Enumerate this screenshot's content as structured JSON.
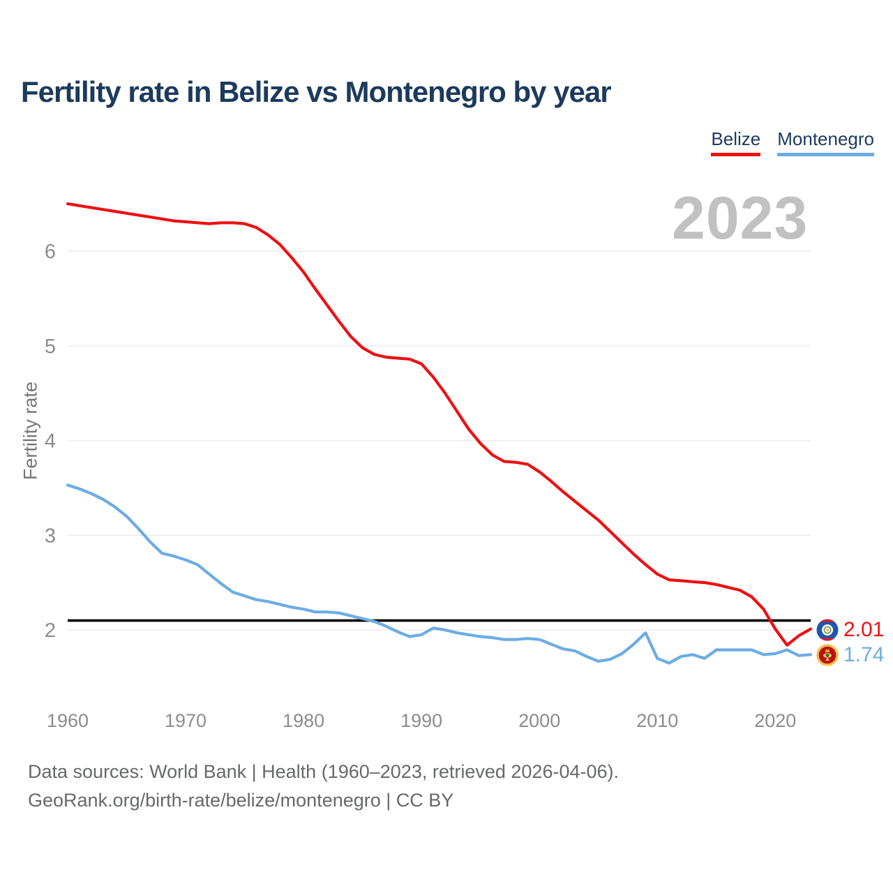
{
  "header": {
    "title": "Fertility rate in Belize vs Montenegro by year"
  },
  "legend": {
    "items": [
      {
        "label": "Belize",
        "color": "#ee0f12"
      },
      {
        "label": "Montenegro",
        "color": "#6cace4"
      }
    ]
  },
  "chart_data": {
    "type": "line",
    "title": "Fertility rate in Belize vs Montenegro by year",
    "ylabel": "Fertility rate",
    "xlabel": "",
    "watermark": "2023",
    "grid": "horizontal-only",
    "legend_position": "top-right",
    "ylim": [
      1.5,
      6.6
    ],
    "x_range": [
      1960,
      2023
    ],
    "yticks": [
      2,
      3,
      4,
      5,
      6
    ],
    "xticks": [
      1960,
      1970,
      1980,
      1990,
      2000,
      2010,
      2020
    ],
    "reference_line": {
      "value": 2.1,
      "color": "#000000"
    },
    "x": [
      1960,
      1961,
      1962,
      1963,
      1964,
      1965,
      1966,
      1967,
      1968,
      1969,
      1970,
      1971,
      1972,
      1973,
      1974,
      1975,
      1976,
      1977,
      1978,
      1979,
      1980,
      1981,
      1982,
      1983,
      1984,
      1985,
      1986,
      1987,
      1988,
      1989,
      1990,
      1991,
      1992,
      1993,
      1994,
      1995,
      1996,
      1997,
      1998,
      1999,
      2000,
      2001,
      2002,
      2003,
      2004,
      2005,
      2006,
      2007,
      2008,
      2009,
      2010,
      2011,
      2012,
      2013,
      2014,
      2015,
      2016,
      2017,
      2018,
      2019,
      2020,
      2021,
      2022,
      2023
    ],
    "series": [
      {
        "name": "Belize",
        "color": "#ee0f12",
        "end_label": "2.01",
        "values": [
          6.5,
          6.48,
          6.46,
          6.44,
          6.42,
          6.4,
          6.38,
          6.36,
          6.34,
          6.32,
          6.31,
          6.3,
          6.29,
          6.3,
          6.3,
          6.29,
          6.25,
          6.17,
          6.07,
          5.93,
          5.78,
          5.6,
          5.43,
          5.26,
          5.1,
          4.98,
          4.91,
          4.88,
          4.87,
          4.86,
          4.81,
          4.67,
          4.5,
          4.31,
          4.12,
          3.97,
          3.85,
          3.78,
          3.77,
          3.75,
          3.67,
          3.57,
          3.46,
          3.36,
          3.26,
          3.16,
          3.04,
          2.92,
          2.8,
          2.69,
          2.59,
          2.53,
          2.52,
          2.51,
          2.5,
          2.48,
          2.45,
          2.42,
          2.35,
          2.22,
          2.01,
          1.84,
          1.94,
          2.01
        ]
      },
      {
        "name": "Montenegro",
        "color": "#6cace4",
        "end_label": "1.74",
        "values": [
          3.53,
          3.49,
          3.44,
          3.38,
          3.3,
          3.2,
          3.07,
          2.93,
          2.81,
          2.78,
          2.74,
          2.69,
          2.59,
          2.49,
          2.4,
          2.36,
          2.32,
          2.3,
          2.27,
          2.24,
          2.22,
          2.19,
          2.19,
          2.18,
          2.15,
          2.12,
          2.09,
          2.04,
          1.98,
          1.93,
          1.95,
          2.02,
          2.0,
          1.97,
          1.95,
          1.93,
          1.92,
          1.9,
          1.9,
          1.91,
          1.9,
          1.85,
          1.8,
          1.78,
          1.72,
          1.67,
          1.69,
          1.75,
          1.85,
          1.97,
          1.7,
          1.65,
          1.72,
          1.74,
          1.7,
          1.79,
          1.79,
          1.79,
          1.79,
          1.74,
          1.75,
          1.79,
          1.73,
          1.74
        ]
      }
    ]
  },
  "footer": {
    "line1": "Data sources: World Bank | Health (1960–2023, retrieved 2026-04-06).",
    "line2": "GeoRank.org/birth-rate/belize/montenegro | CC BY"
  }
}
